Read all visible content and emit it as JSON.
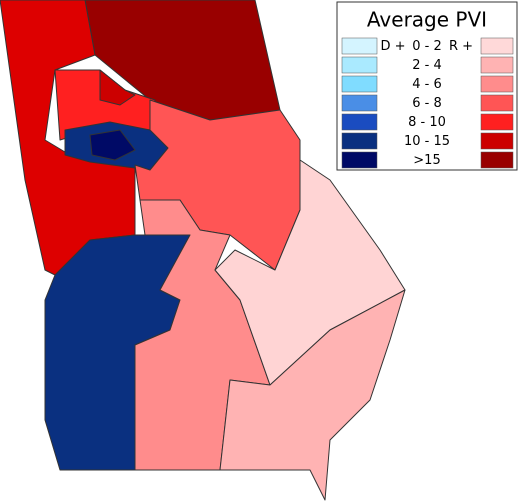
{
  "legend": {
    "title": "Average PVI",
    "left_label": "D +",
    "right_label": "R +",
    "rows": [
      {
        "range": "0 - 2",
        "d_color": "#d4f4ff",
        "r_color": "#ffd9d9"
      },
      {
        "range": "2 - 4",
        "d_color": "#aaeaff",
        "r_color": "#ffb3b3"
      },
      {
        "range": "4 - 6",
        "d_color": "#80dcff",
        "r_color": "#ff8c8c"
      },
      {
        "range": "6 - 8",
        "d_color": "#4a8ee6",
        "r_color": "#ff5555"
      },
      {
        "range": "8 - 10",
        "d_color": "#1a4cc0",
        "r_color": "#ff2020"
      },
      {
        "range": "10 - 15",
        "d_color": "#0a3080",
        "r_color": "#cc0000"
      },
      {
        "range": ">15",
        "d_color": "#000a66",
        "r_color": "#990000"
      }
    ]
  }
}
